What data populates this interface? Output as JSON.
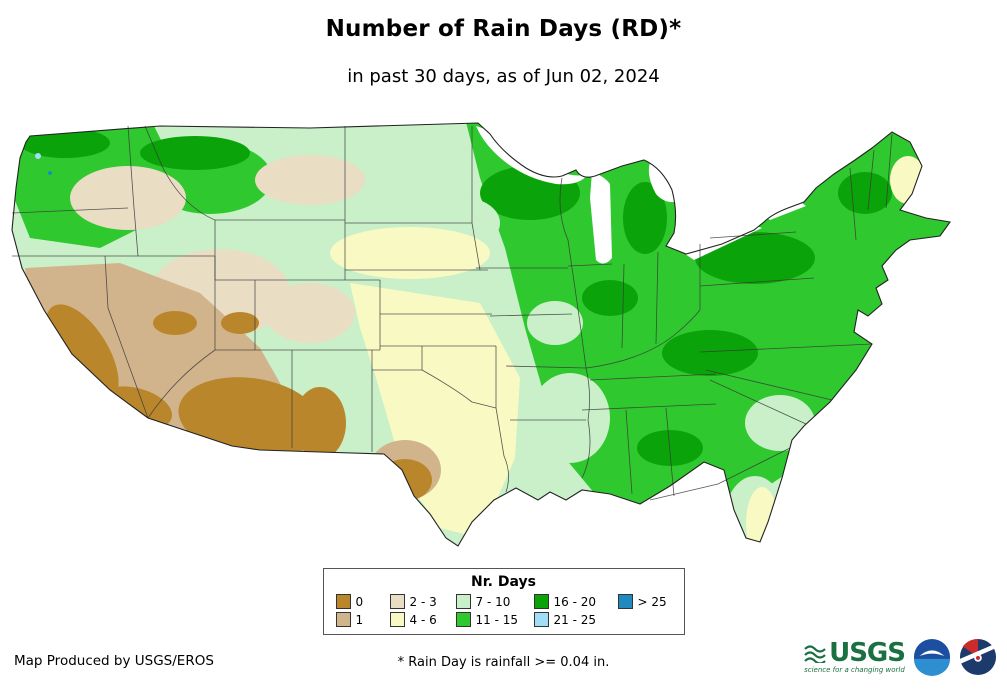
{
  "title": "Number of Rain Days (RD)*",
  "subtitle": "in past 30 days, as of Jun 02, 2024",
  "map": {
    "name": "Contiguous United States rain-days raster map",
    "water_color": "#ffffff",
    "border_color": "#3a3a3a"
  },
  "legend": {
    "title": "Nr. Days",
    "rows": [
      [
        {
          "label": "0",
          "color": "#ba862b"
        },
        {
          "label": "2 - 3",
          "color": "#e9ddc4"
        },
        {
          "label": "7 - 10",
          "color": "#c9f0c9"
        },
        {
          "label": "16 - 20",
          "color": "#0aa30a"
        },
        {
          "label": "> 25",
          "color": "#1f8ac0"
        }
      ],
      [
        {
          "label": "1",
          "color": "#d2b48c"
        },
        {
          "label": "4 - 6",
          "color": "#f9f9c4"
        },
        {
          "label": "11 - 15",
          "color": "#2fc82f"
        },
        {
          "label": "21 - 25",
          "color": "#9fdef5"
        }
      ]
    ]
  },
  "footer": {
    "produced_by": "Map Produced by USGS/EROS",
    "note": "* Rain Day is rainfall >= 0.04 in.",
    "logos": [
      {
        "name": "usgs-logo",
        "text": "USGS",
        "tagline": "science for a changing world",
        "color": "#1a7040"
      },
      {
        "name": "noaa-logo",
        "color": "#1c4fa1"
      },
      {
        "name": "nws-logo",
        "color": "#1c3a6b"
      }
    ]
  }
}
